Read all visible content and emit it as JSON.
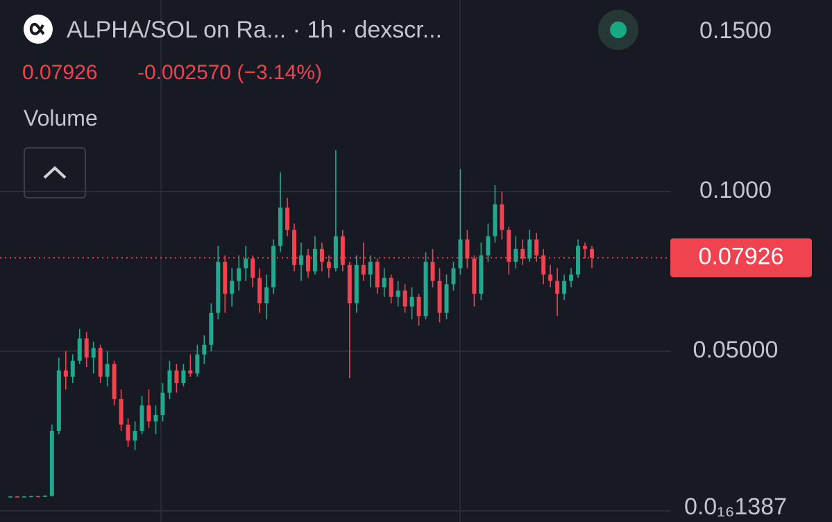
{
  "header": {
    "title": "ALPHA/SOL on Ra... · 1h · dexscr...",
    "price": "0.07926",
    "change": "-0.002570 (−3.14%)",
    "volume": "Volume"
  },
  "chart_data": {
    "type": "candlestick",
    "up_color": "#22a88e",
    "down_color": "#f0424f",
    "ylim": [
      -0.0035,
      0.16
    ],
    "yticks": [
      {
        "value": 1.387e-17,
        "label": "0.0₁₆1387"
      },
      {
        "value": 0.05,
        "label": "0.05000"
      },
      {
        "value": 0.1,
        "label": "0.1000"
      },
      {
        "value": 0.15,
        "label": "0.1500"
      }
    ],
    "grid": true,
    "price_line": {
      "value": 0.07926,
      "label": "0.07926"
    },
    "open": [
      0.0044,
      0.0045,
      0.0044,
      0.0045,
      0.0046,
      0.0045,
      0.0047,
      0.025,
      0.044,
      0.042,
      0.047,
      0.054,
      0.048,
      0.051,
      0.042,
      0.046,
      0.035,
      0.027,
      0.022,
      0.025,
      0.033,
      0.028,
      0.03,
      0.037,
      0.044,
      0.04,
      0.044,
      0.043,
      0.049,
      0.052,
      0.062,
      0.078,
      0.068,
      0.072,
      0.076,
      0.079,
      0.073,
      0.065,
      0.07,
      0.083,
      0.095,
      0.088,
      0.077,
      0.08,
      0.075,
      0.082,
      0.078,
      0.076,
      0.086,
      0.077,
      0.065,
      0.077,
      0.074,
      0.078,
      0.07,
      0.073,
      0.067,
      0.069,
      0.064,
      0.067,
      0.061,
      0.078,
      0.072,
      0.062,
      0.071,
      0.076,
      0.085,
      0.079,
      0.068,
      0.08,
      0.086,
      0.096,
      0.088,
      0.078,
      0.082,
      0.079,
      0.085,
      0.08,
      0.074,
      0.072,
      0.068,
      0.072,
      0.074,
      0.083,
      0.082
    ],
    "high": [
      0.0046,
      0.0046,
      0.0046,
      0.0047,
      0.0047,
      0.0049,
      0.027,
      0.048,
      0.05,
      0.049,
      0.057,
      0.056,
      0.053,
      0.052,
      0.05,
      0.047,
      0.038,
      0.029,
      0.028,
      0.036,
      0.038,
      0.033,
      0.04,
      0.047,
      0.046,
      0.046,
      0.049,
      0.052,
      0.055,
      0.065,
      0.083,
      0.08,
      0.076,
      0.08,
      0.083,
      0.08,
      0.076,
      0.074,
      0.085,
      0.106,
      0.098,
      0.09,
      0.084,
      0.082,
      0.086,
      0.084,
      0.08,
      0.113,
      0.088,
      0.078,
      0.08,
      0.084,
      0.08,
      0.079,
      0.076,
      0.074,
      0.072,
      0.071,
      0.07,
      0.068,
      0.081,
      0.082,
      0.076,
      0.074,
      0.078,
      0.107,
      0.088,
      0.08,
      0.084,
      0.09,
      0.102,
      0.1,
      0.089,
      0.086,
      0.085,
      0.088,
      0.087,
      0.082,
      0.077,
      0.076,
      0.074,
      0.076,
      0.085,
      0.084,
      0.083
    ],
    "low": [
      0.0043,
      0.0044,
      0.0043,
      0.0044,
      0.0044,
      0.0044,
      0.0045,
      0.024,
      0.038,
      0.04,
      0.046,
      0.045,
      0.043,
      0.04,
      0.039,
      0.033,
      0.025,
      0.02,
      0.019,
      0.024,
      0.026,
      0.024,
      0.028,
      0.035,
      0.037,
      0.039,
      0.042,
      0.042,
      0.046,
      0.05,
      0.06,
      0.062,
      0.064,
      0.069,
      0.072,
      0.07,
      0.062,
      0.06,
      0.068,
      0.081,
      0.086,
      0.075,
      0.072,
      0.073,
      0.074,
      0.075,
      0.073,
      0.075,
      0.075,
      0.0415,
      0.062,
      0.072,
      0.07,
      0.068,
      0.067,
      0.065,
      0.064,
      0.062,
      0.06,
      0.058,
      0.06,
      0.07,
      0.059,
      0.06,
      0.069,
      0.074,
      0.076,
      0.064,
      0.066,
      0.078,
      0.084,
      0.085,
      0.074,
      0.076,
      0.077,
      0.078,
      0.078,
      0.071,
      0.07,
      0.061,
      0.066,
      0.07,
      0.073,
      0.079,
      0.076
    ],
    "close": [
      0.0045,
      0.0044,
      0.0045,
      0.0046,
      0.0045,
      0.0047,
      0.025,
      0.044,
      0.042,
      0.047,
      0.054,
      0.048,
      0.051,
      0.042,
      0.046,
      0.035,
      0.027,
      0.022,
      0.025,
      0.033,
      0.028,
      0.03,
      0.037,
      0.044,
      0.04,
      0.044,
      0.043,
      0.049,
      0.052,
      0.062,
      0.078,
      0.068,
      0.072,
      0.076,
      0.079,
      0.073,
      0.065,
      0.07,
      0.083,
      0.095,
      0.088,
      0.077,
      0.08,
      0.075,
      0.082,
      0.078,
      0.076,
      0.086,
      0.077,
      0.065,
      0.077,
      0.074,
      0.078,
      0.07,
      0.073,
      0.067,
      0.069,
      0.064,
      0.067,
      0.061,
      0.078,
      0.072,
      0.062,
      0.071,
      0.076,
      0.085,
      0.079,
      0.068,
      0.08,
      0.086,
      0.096,
      0.088,
      0.078,
      0.082,
      0.079,
      0.085,
      0.08,
      0.074,
      0.072,
      0.068,
      0.072,
      0.074,
      0.083,
      0.082,
      0.0793
    ]
  }
}
